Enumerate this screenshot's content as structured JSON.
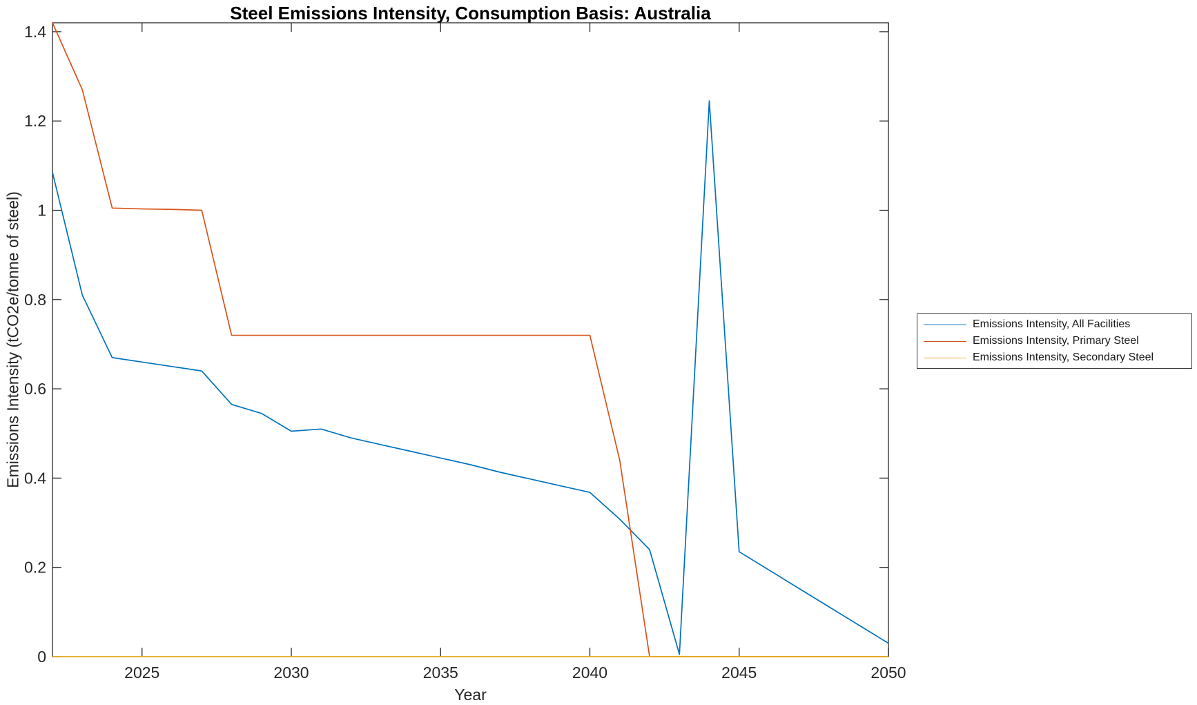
{
  "chart_data": {
    "type": "line",
    "title": "Steel Emissions Intensity, Consumption Basis: Australia",
    "xlabel": "Year",
    "ylabel": "Emissions Intensity (tCO2e/tonne of steel)",
    "x": [
      2022,
      2023,
      2024,
      2025,
      2026,
      2027,
      2028,
      2029,
      2030,
      2031,
      2032,
      2033,
      2034,
      2035,
      2036,
      2037,
      2038,
      2039,
      2040,
      2041,
      2042,
      2043,
      2044,
      2045,
      2046,
      2047,
      2048,
      2049,
      2050
    ],
    "series": [
      {
        "name": "Emissions Intensity, All Facilities",
        "color": "#0072BD",
        "values": [
          1.085,
          0.81,
          0.67,
          0.66,
          0.65,
          0.64,
          0.565,
          0.545,
          0.505,
          0.51,
          0.49,
          0.475,
          0.46,
          0.445,
          0.43,
          0.413,
          0.398,
          0.383,
          0.368,
          0.308,
          0.24,
          0.005,
          1.245,
          0.235,
          0.194,
          0.153,
          0.112,
          0.071,
          0.03
        ]
      },
      {
        "name": "Emissions Intensity, Primary Steel",
        "color": "#D95319",
        "values": [
          1.42,
          1.27,
          1.005,
          1.003,
          1.002,
          1.0,
          0.72,
          0.72,
          0.72,
          0.72,
          0.72,
          0.72,
          0.72,
          0.72,
          0.72,
          0.72,
          0.72,
          0.72,
          0.72,
          0.44,
          0.0,
          0.0,
          0.0,
          0.0,
          0.0,
          0.0,
          0.0,
          0.0,
          0.0
        ]
      },
      {
        "name": "Emissions Intensity, Secondary Steel",
        "color": "#EDB120",
        "values": [
          0.0,
          0.0,
          0.0,
          0.0,
          0.0,
          0.0,
          0.0,
          0.0,
          0.0,
          0.0,
          0.0,
          0.0,
          0.0,
          0.0,
          0.0,
          0.0,
          0.0,
          0.0,
          0.0,
          0.0,
          0.0,
          0.0,
          0.0,
          0.0,
          0.0,
          0.0,
          0.0,
          0.0,
          0.0
        ]
      }
    ],
    "xlim": [
      2022,
      2050
    ],
    "ylim": [
      0,
      1.42
    ],
    "xticks": [
      2025,
      2030,
      2035,
      2040,
      2045,
      2050
    ],
    "yticks": [
      0,
      0.2,
      0.4,
      0.6,
      0.8,
      1,
      1.2,
      1.4
    ],
    "grid": false,
    "legend_position": "outside-right",
    "axis_color": "#262626",
    "background": "#ffffff"
  }
}
